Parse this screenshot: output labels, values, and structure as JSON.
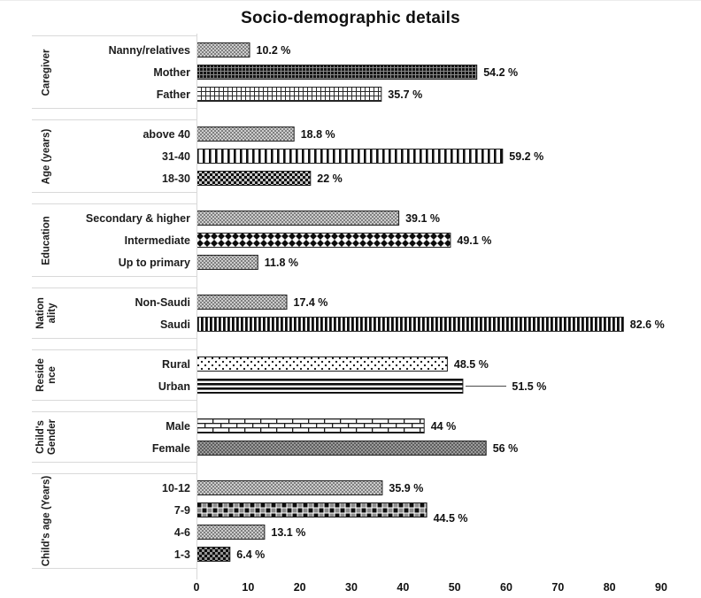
{
  "chart_data": {
    "type": "bar",
    "orientation": "horizontal",
    "title": "Socio-demographic details",
    "xlabel": "",
    "ylabel": "",
    "xlim": [
      0,
      90
    ],
    "x_ticks": [
      0,
      10,
      20,
      30,
      40,
      50,
      60,
      70,
      80,
      90
    ],
    "grid": false,
    "value_suffix": " %",
    "groups": [
      {
        "label": "Caregiver",
        "items": [
          {
            "category": "Nanny/relatives",
            "value": 10.2,
            "label": "10.2 %",
            "pattern": "gray-dots"
          },
          {
            "category": "Mother",
            "value": 54.2,
            "label": "54.2 %",
            "pattern": "dark-weave"
          },
          {
            "category": "Father",
            "value": 35.7,
            "label": "35.7 %",
            "pattern": "small-grid"
          }
        ]
      },
      {
        "label": "Age (years)",
        "items": [
          {
            "category": "above 40",
            "value": 18.8,
            "label": "18.8 %",
            "pattern": "gray-dots"
          },
          {
            "category": "31-40",
            "value": 59.2,
            "label": "59.2 %",
            "pattern": "vlines-wide"
          },
          {
            "category": "18-30",
            "value": 22,
            "label": "22 %",
            "pattern": "checker-small"
          }
        ]
      },
      {
        "label": "Education",
        "items": [
          {
            "category": "Secondary & higher",
            "value": 39.1,
            "label": "39.1 %",
            "pattern": "gray-dots"
          },
          {
            "category": "Intermediate",
            "value": 49.1,
            "label": "49.1 %",
            "pattern": "diamonds-bw"
          },
          {
            "category": "Up to primary",
            "value": 11.8,
            "label": "11.8 %",
            "pattern": "gray-dots"
          }
        ]
      },
      {
        "label": "Nation ality",
        "items": [
          {
            "category": "Non-Saudi",
            "value": 17.4,
            "label": "17.4 %",
            "pattern": "gray-dots"
          },
          {
            "category": "Saudi",
            "value": 82.6,
            "label": "82.6 %",
            "pattern": "vlines-dense"
          }
        ]
      },
      {
        "label": "Reside nce",
        "items": [
          {
            "category": "Rural",
            "value": 48.5,
            "label": "48.5 %",
            "pattern": "dots-sparse"
          },
          {
            "category": "Urban",
            "value": 51.5,
            "label": "51.5 %",
            "pattern": "hlines",
            "leader_line": true
          }
        ]
      },
      {
        "label": "Child's Gender",
        "items": [
          {
            "category": "Male",
            "value": 44,
            "label": "44 %",
            "pattern": "brick"
          },
          {
            "category": "Female",
            "value": 56,
            "label": "56 %",
            "pattern": "gray-dots-dark"
          }
        ]
      },
      {
        "label": "Child's age (Years)",
        "items": [
          {
            "category": "10-12",
            "value": 35.9,
            "label": "35.9 %",
            "pattern": "gray-dots"
          },
          {
            "category": "7-9",
            "value": 44.5,
            "label": "44.5 %",
            "pattern": "checker-large",
            "label_dy": 9
          },
          {
            "category": "4-6",
            "value": 13.1,
            "label": "13.1 %",
            "pattern": "gray-dots"
          },
          {
            "category": "1-3",
            "value": 6.4,
            "label": "6.4 %",
            "pattern": "checker-dark"
          }
        ]
      }
    ]
  },
  "colors": {
    "bar_outline": "#1f1f1f",
    "axis_line": "#d9d9d9",
    "text": "#111111"
  }
}
